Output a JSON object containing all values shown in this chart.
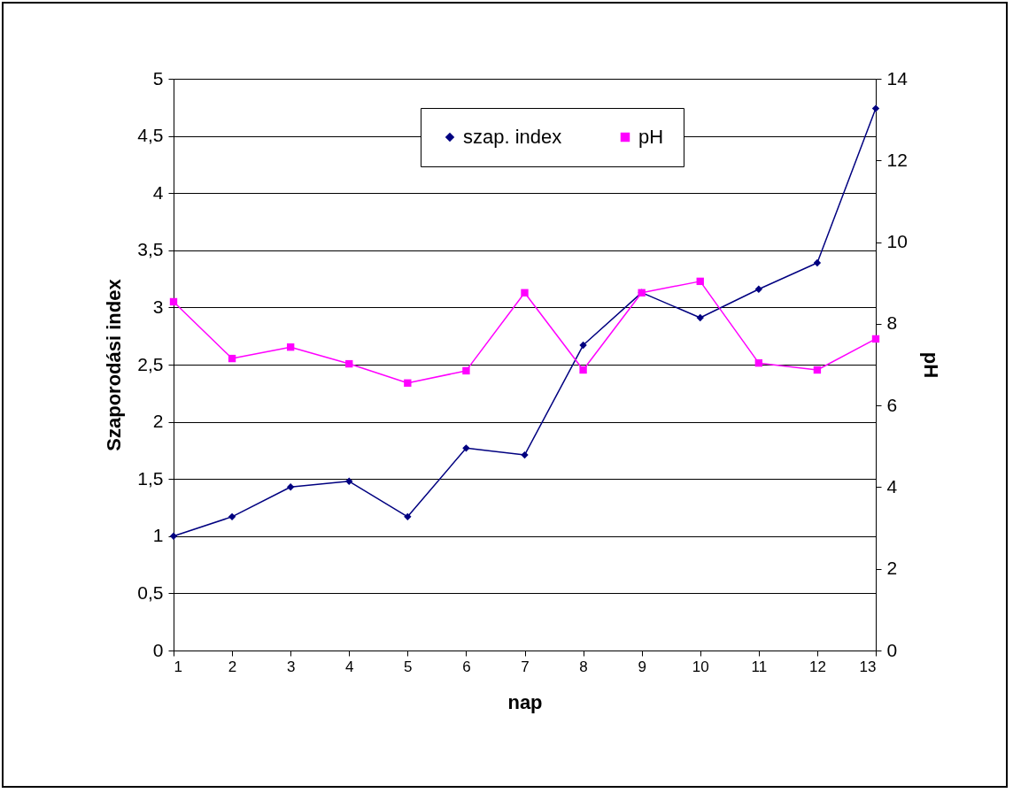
{
  "chart_data": {
    "type": "line",
    "xlabel": "nap",
    "ylabel": "Szaporodási index",
    "y2label": "pH",
    "x": [
      1,
      2,
      3,
      4,
      5,
      6,
      7,
      8,
      9,
      10,
      11,
      12,
      13
    ],
    "xlim": [
      1,
      13
    ],
    "xticks": [
      1,
      2,
      3,
      4,
      5,
      6,
      7,
      8,
      9,
      10,
      11,
      12,
      13
    ],
    "ylim": [
      0,
      5
    ],
    "yticks": [
      0,
      {
        "value": 0.5,
        "label": "0,5"
      },
      1,
      {
        "value": 1.5,
        "label": "1,5"
      },
      2,
      {
        "value": 2.5,
        "label": "2,5"
      },
      3,
      {
        "value": 3.5,
        "label": "3,5"
      },
      4,
      {
        "value": 4.5,
        "label": "4,5"
      },
      5
    ],
    "y2lim": [
      0,
      14
    ],
    "y2ticks": [
      0,
      2,
      4,
      6,
      8,
      10,
      12,
      14
    ],
    "grid": "y",
    "legend": "top right",
    "series": [
      {
        "name": "szap. index",
        "color": "#000080",
        "marker": "diamond",
        "values": [
          1.0,
          1.17,
          1.43,
          1.48,
          1.17,
          1.77,
          1.71,
          2.67,
          3.13,
          2.91,
          3.16,
          3.39,
          4.74
        ]
      },
      {
        "name": "pH",
        "color": "#ff00ff",
        "marker": "square",
        "axis": "y2",
        "values": [
          8.54,
          7.15,
          7.43,
          7.02,
          6.55,
          6.85,
          8.76,
          6.87,
          8.76,
          9.04,
          7.04,
          6.87,
          7.63
        ]
      }
    ]
  }
}
